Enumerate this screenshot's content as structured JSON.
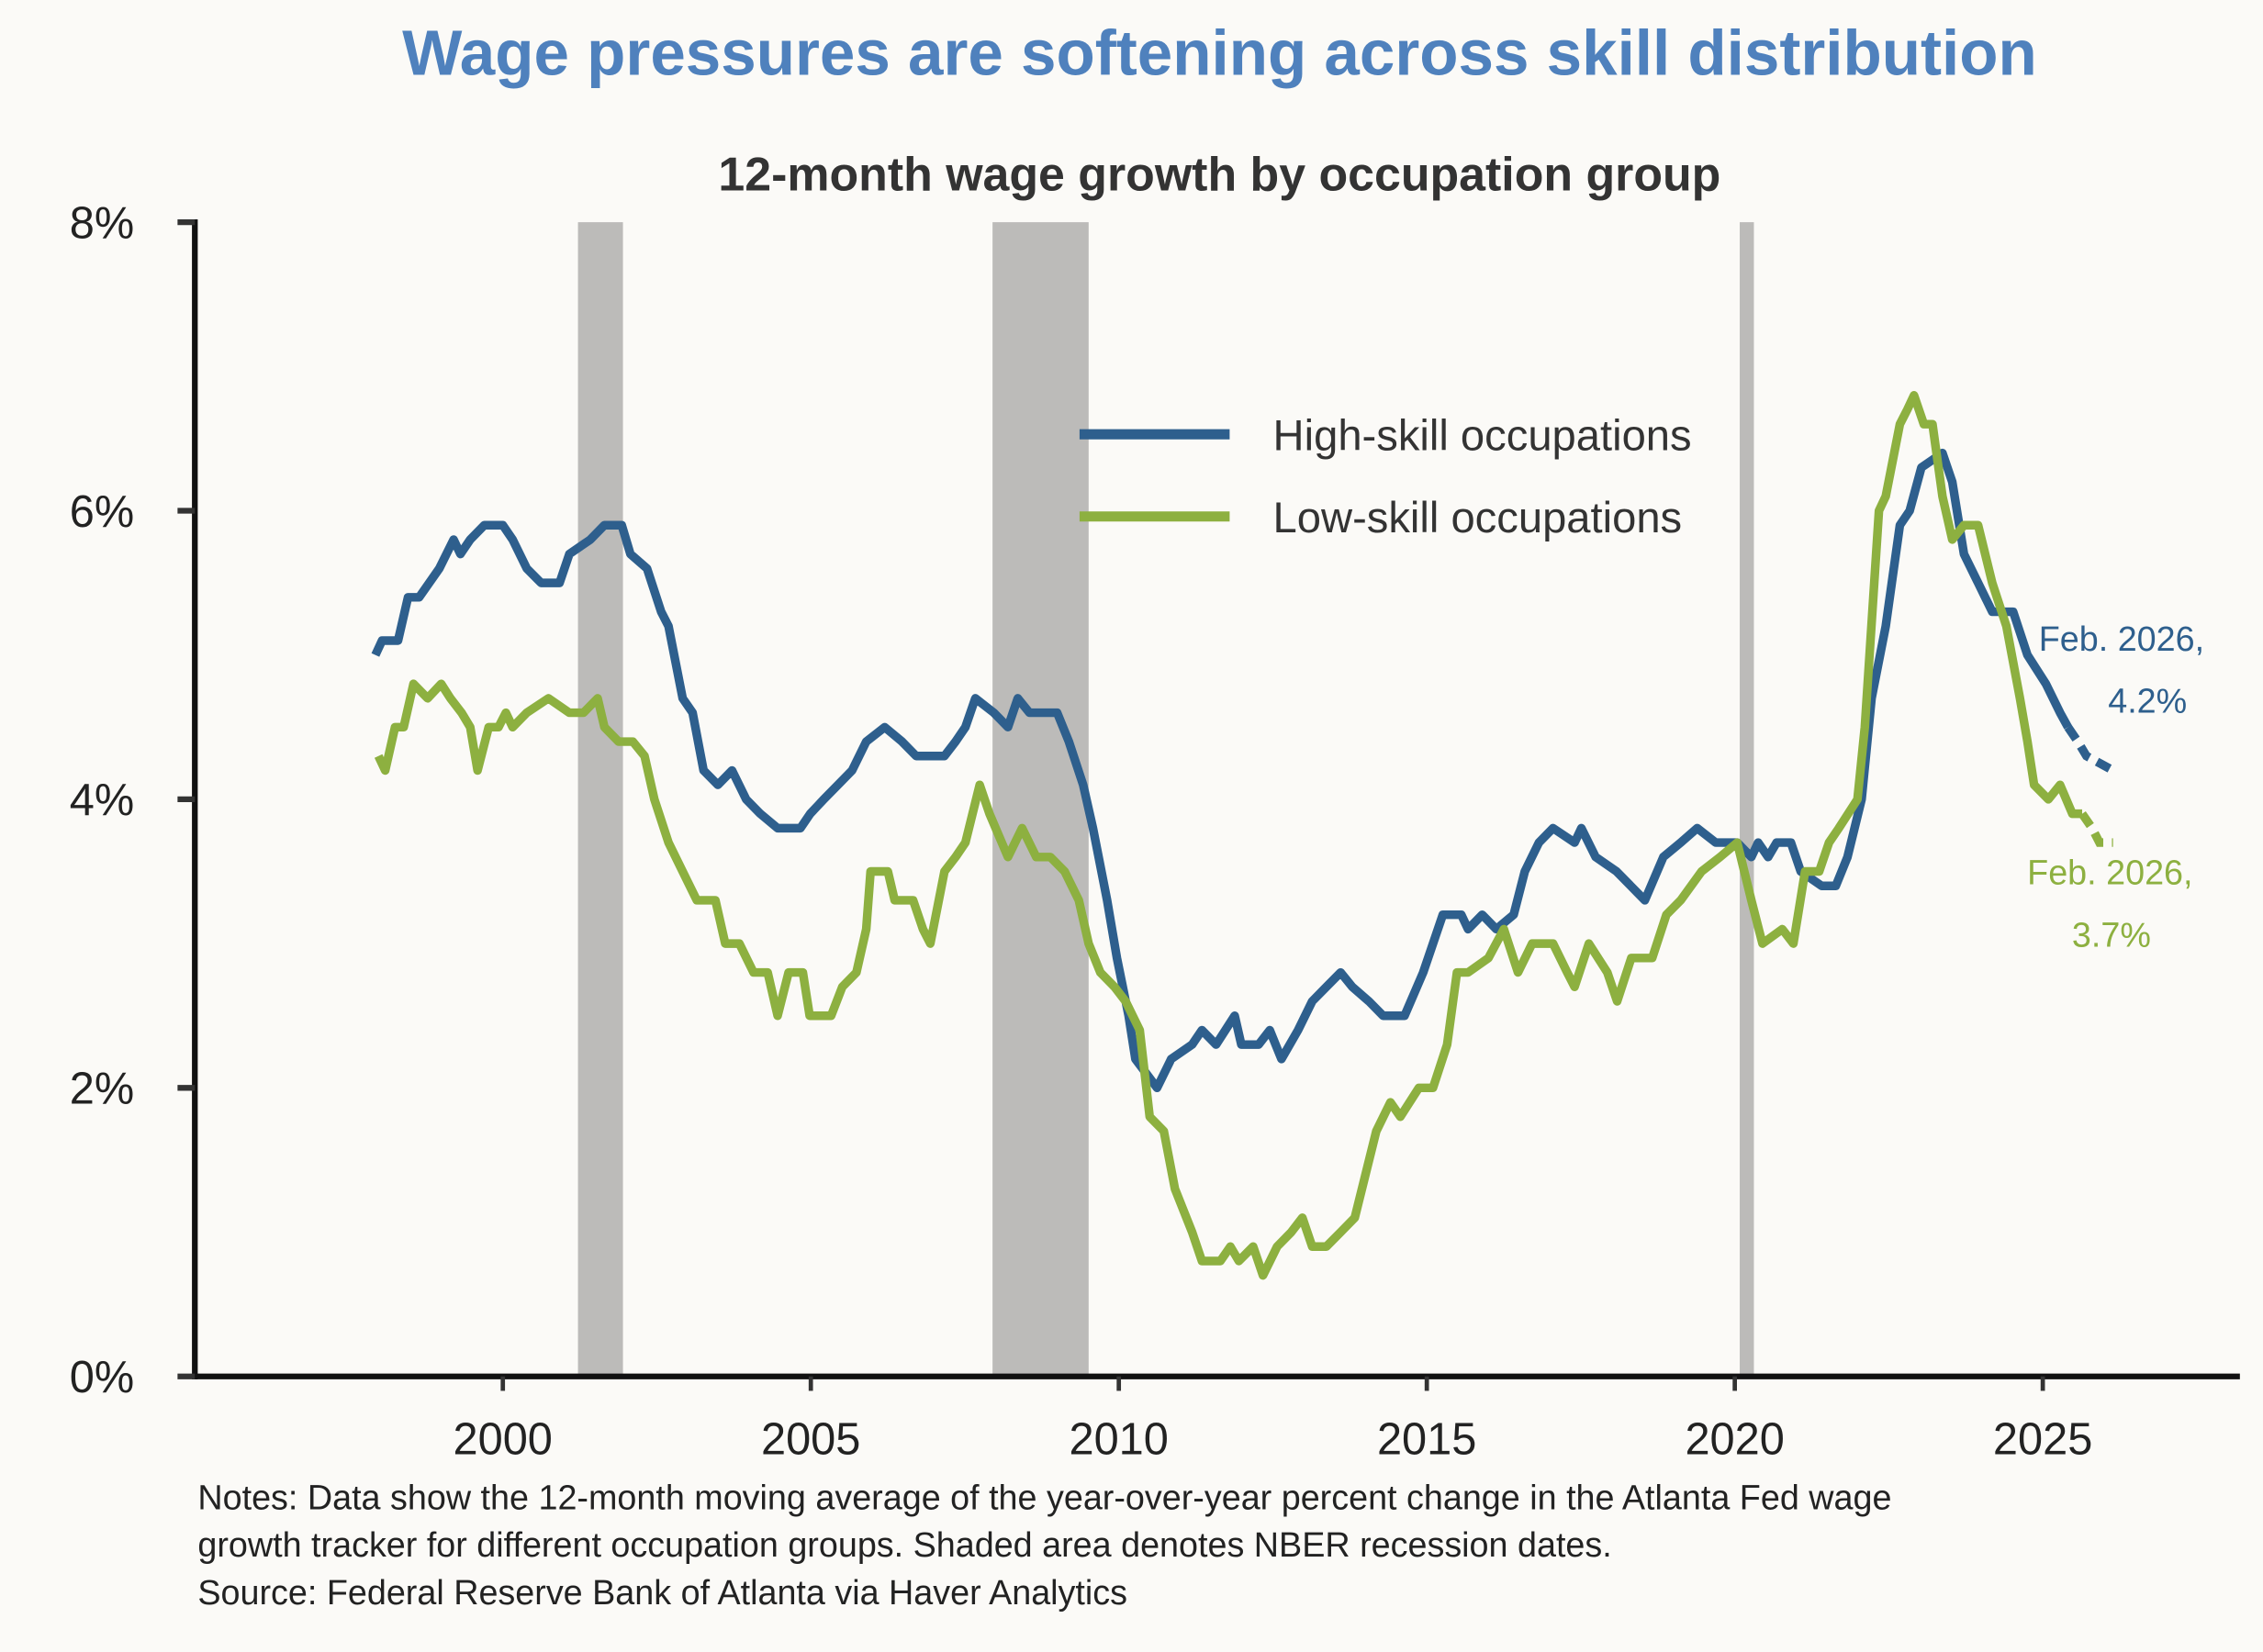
{
  "chart_data": {
    "type": "line",
    "title": "Wage pressures are softening across skill distribution",
    "subtitle": "12-month wage growth by occupation group",
    "xlabel": "",
    "ylabel": "",
    "xlim": [
      1995,
      2028.2
    ],
    "ylim": [
      0,
      8
    ],
    "x_ticks": [
      2000,
      2005,
      2010,
      2015,
      2020,
      2025
    ],
    "y_ticks": [
      0,
      2,
      4,
      6,
      8
    ],
    "y_tick_labels": [
      "0%",
      "2%",
      "4%",
      "6%",
      "8%"
    ],
    "grid": false,
    "legend_position": "top-center",
    "recessions": [
      [
        2001.22,
        2001.95
      ],
      [
        2007.95,
        2009.51
      ],
      [
        2020.08,
        2020.31
      ]
    ],
    "series": [
      {
        "name": "High-skill occupations",
        "color": "#2e5f8d",
        "dashed_from": 2025.41,
        "x": [
          1997.93,
          1998.04,
          1998.3,
          1998.46,
          1998.64,
          1998.97,
          1999.2,
          1999.31,
          1999.47,
          1999.7,
          2000.0,
          2000.16,
          2000.39,
          2000.62,
          2000.92,
          2001.08,
          2001.42,
          2001.65,
          2001.93,
          2002.07,
          2002.34,
          2002.57,
          2002.69,
          2002.92,
          2003.08,
          2003.26,
          2003.49,
          2003.72,
          2003.95,
          2004.18,
          2004.46,
          2004.83,
          2004.99,
          2005.21,
          2005.44,
          2005.67,
          2005.9,
          2006.2,
          2006.48,
          2006.71,
          2007.17,
          2007.35,
          2007.51,
          2007.67,
          2007.97,
          2008.2,
          2008.36,
          2008.55,
          2009.0,
          2009.19,
          2009.42,
          2009.58,
          2009.81,
          2009.97,
          2010.16,
          2010.27,
          2010.62,
          2010.85,
          2011.19,
          2011.35,
          2011.58,
          2011.88,
          2011.99,
          2012.27,
          2012.45,
          2012.64,
          2012.91,
          2013.14,
          2013.37,
          2013.6,
          2013.79,
          2014.06,
          2014.29,
          2014.64,
          2014.94,
          2015.26,
          2015.56,
          2015.67,
          2015.9,
          2016.13,
          2016.41,
          2016.59,
          2016.82,
          2017.05,
          2017.4,
          2017.51,
          2017.74,
          2018.08,
          2018.31,
          2018.54,
          2018.84,
          2019.12,
          2019.39,
          2019.69,
          2020.04,
          2020.27,
          2020.38,
          2020.54,
          2020.68,
          2020.91,
          2021.07,
          2021.41,
          2021.64,
          2021.83,
          2022.06,
          2022.22,
          2022.45,
          2022.68,
          2022.84,
          2023.03,
          2023.37,
          2023.53,
          2023.72,
          2023.95,
          2024.18,
          2024.52,
          2024.75,
          2025.05,
          2025.28,
          2025.41,
          2025.57,
          2025.71,
          2026.14
        ],
        "y": [
          5.0,
          5.1,
          5.1,
          5.4,
          5.4,
          5.6,
          5.8,
          5.7,
          5.8,
          5.9,
          5.9,
          5.8,
          5.6,
          5.5,
          5.5,
          5.7,
          5.8,
          5.9,
          5.9,
          5.7,
          5.6,
          5.3,
          5.2,
          4.7,
          4.6,
          4.2,
          4.1,
          4.2,
          4.0,
          3.9,
          3.8,
          3.8,
          3.9,
          4.0,
          4.1,
          4.2,
          4.4,
          4.5,
          4.4,
          4.3,
          4.3,
          4.4,
          4.5,
          4.7,
          4.6,
          4.5,
          4.7,
          4.6,
          4.6,
          4.4,
          4.1,
          3.8,
          3.3,
          2.9,
          2.5,
          2.2,
          2.0,
          2.2,
          2.3,
          2.4,
          2.3,
          2.5,
          2.3,
          2.3,
          2.4,
          2.2,
          2.4,
          2.6,
          2.7,
          2.8,
          2.7,
          2.6,
          2.5,
          2.5,
          2.8,
          3.2,
          3.2,
          3.1,
          3.2,
          3.1,
          3.2,
          3.5,
          3.7,
          3.8,
          3.7,
          3.8,
          3.6,
          3.5,
          3.4,
          3.3,
          3.6,
          3.7,
          3.8,
          3.7,
          3.7,
          3.6,
          3.7,
          3.6,
          3.7,
          3.7,
          3.5,
          3.4,
          3.4,
          3.6,
          4.0,
          4.7,
          5.2,
          5.9,
          6.0,
          6.3,
          6.4,
          6.2,
          5.7,
          5.5,
          5.3,
          5.3,
          5.0,
          4.8,
          4.6,
          4.5,
          4.4,
          4.3,
          4.2
        ],
        "annotation": {
          "line1": "Feb. 2026,",
          "line2": "4.2%"
        }
      },
      {
        "name": "Low-skill occupations",
        "color": "#8db040",
        "dashed_from": 2025.64,
        "x": [
          1997.98,
          1998.09,
          1998.25,
          1998.39,
          1998.55,
          1998.78,
          1999.0,
          1999.15,
          1999.33,
          1999.47,
          1999.59,
          1999.77,
          1999.93,
          2000.05,
          2000.16,
          2000.39,
          2000.74,
          2001.08,
          2001.31,
          2001.54,
          2001.65,
          2001.88,
          2002.11,
          2002.3,
          2002.46,
          2002.69,
          2002.92,
          2003.15,
          2003.45,
          2003.61,
          2003.84,
          2004.07,
          2004.3,
          2004.46,
          2004.64,
          2004.87,
          2004.98,
          2005.33,
          2005.51,
          2005.74,
          2005.9,
          2005.97,
          2006.25,
          2006.36,
          2006.66,
          2006.82,
          2006.94,
          2007.17,
          2007.35,
          2007.51,
          2007.74,
          2007.9,
          2008.2,
          2008.43,
          2008.66,
          2008.89,
          2009.12,
          2009.35,
          2009.51,
          2009.7,
          2009.93,
          2010.11,
          2010.34,
          2010.5,
          2010.73,
          2010.91,
          2011.19,
          2011.35,
          2011.65,
          2011.81,
          2011.95,
          2012.18,
          2012.34,
          2012.57,
          2012.8,
          2012.98,
          2013.14,
          2013.37,
          2013.6,
          2013.83,
          2014.18,
          2014.41,
          2014.57,
          2014.87,
          2015.1,
          2015.33,
          2015.49,
          2015.67,
          2016.0,
          2016.25,
          2016.48,
          2016.71,
          2017.05,
          2017.28,
          2017.4,
          2017.63,
          2017.93,
          2018.09,
          2018.32,
          2018.66,
          2018.89,
          2019.12,
          2019.46,
          2019.76,
          2020.04,
          2020.27,
          2020.45,
          2020.77,
          2020.95,
          2021.14,
          2021.37,
          2021.53,
          2021.69,
          2021.99,
          2022.11,
          2022.34,
          2022.45,
          2022.68,
          2022.8,
          2022.91,
          2023.07,
          2023.21,
          2023.37,
          2023.53,
          2023.72,
          2023.95,
          2024.18,
          2024.41,
          2024.63,
          2024.75,
          2024.86,
          2025.09,
          2025.28,
          2025.48,
          2025.64,
          2025.8,
          2025.92,
          2026.14
        ],
        "y": [
          4.3,
          4.2,
          4.5,
          4.5,
          4.8,
          4.7,
          4.8,
          4.7,
          4.6,
          4.5,
          4.2,
          4.5,
          4.5,
          4.6,
          4.5,
          4.6,
          4.7,
          4.6,
          4.6,
          4.7,
          4.5,
          4.4,
          4.4,
          4.3,
          4.0,
          3.7,
          3.5,
          3.3,
          3.3,
          3.0,
          3.0,
          2.8,
          2.8,
          2.5,
          2.8,
          2.8,
          2.5,
          2.5,
          2.7,
          2.8,
          3.1,
          3.5,
          3.5,
          3.3,
          3.3,
          3.1,
          3.0,
          3.5,
          3.6,
          3.7,
          4.1,
          3.9,
          3.6,
          3.8,
          3.6,
          3.6,
          3.5,
          3.3,
          3.0,
          2.8,
          2.7,
          2.6,
          2.4,
          1.8,
          1.7,
          1.3,
          1.0,
          0.8,
          0.8,
          0.9,
          0.8,
          0.9,
          0.7,
          0.9,
          1.0,
          1.1,
          0.9,
          0.9,
          1.0,
          1.1,
          1.7,
          1.9,
          1.8,
          2.0,
          2.0,
          2.3,
          2.8,
          2.8,
          2.9,
          3.1,
          2.8,
          3.0,
          3.0,
          2.8,
          2.7,
          3.0,
          2.8,
          2.6,
          2.9,
          2.9,
          3.2,
          3.3,
          3.5,
          3.6,
          3.7,
          3.3,
          3.0,
          3.1,
          3.0,
          3.5,
          3.5,
          3.7,
          3.8,
          4.0,
          4.5,
          6.0,
          6.1,
          6.6,
          6.7,
          6.8,
          6.6,
          6.6,
          6.1,
          5.8,
          5.9,
          5.9,
          5.5,
          5.2,
          4.7,
          4.4,
          4.1,
          4.0,
          4.1,
          3.9,
          3.9,
          3.8,
          3.7,
          3.7
        ],
        "annotation": {
          "line1": "Feb. 2026,",
          "line2": "3.7%"
        }
      }
    ]
  },
  "notes": {
    "line1": "Notes: Data show the 12-month moving average of the year-over-year percent change in the Atlanta Fed wage",
    "line2": "growth tracker for different occupation groups. Shaded area denotes NBER recession dates.",
    "source": "Source: Federal Reserve Bank of Atlanta via Haver Analytics"
  }
}
